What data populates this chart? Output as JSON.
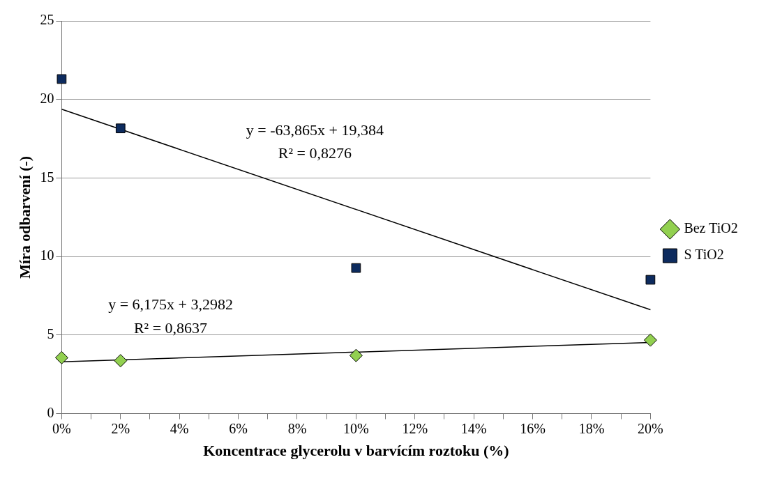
{
  "chart_data": {
    "type": "scatter",
    "xlabel": "Koncentrace glycerolu v barvícím roztoku (%)",
    "ylabel": "Míra odbarvení (-)",
    "series": [
      {
        "name": "Bez TiO2",
        "color": "#92d050",
        "marker": "diamond",
        "x": [
          0,
          2,
          10,
          20
        ],
        "values": [
          3.56,
          3.37,
          3.7,
          4.68
        ]
      },
      {
        "name": "S TiO2",
        "color": "#0d2b5e",
        "marker": "square",
        "x": [
          0,
          2,
          10,
          20
        ],
        "values": [
          21.3,
          18.16,
          9.27,
          8.52
        ]
      },
      {
        "type": "line",
        "color": "#000000",
        "marker": "none",
        "x": [
          0,
          20
        ],
        "values": [
          19.38,
          6.61
        ]
      },
      {
        "type": "line",
        "color": "#000000",
        "marker": "none",
        "x": [
          0,
          20
        ],
        "values": [
          3.3,
          4.53
        ]
      }
    ],
    "xlim": [
      0,
      20
    ],
    "xticks": [
      {
        "value": 0,
        "label": "0%"
      },
      {
        "value": 1,
        "label": null
      },
      {
        "value": 2,
        "label": "2%"
      },
      {
        "value": 3,
        "label": null
      },
      {
        "value": 4,
        "label": "4%"
      },
      {
        "value": 5,
        "label": null
      },
      {
        "value": 6,
        "label": "6%"
      },
      {
        "value": 7,
        "label": null
      },
      {
        "value": 8,
        "label": "8%"
      },
      {
        "value": 9,
        "label": null
      },
      {
        "value": 10,
        "label": "10%"
      },
      {
        "value": 11,
        "label": null
      },
      {
        "value": 12,
        "label": "12%"
      },
      {
        "value": 13,
        "label": null
      },
      {
        "value": 14,
        "label": "14%"
      },
      {
        "value": 15,
        "label": null
      },
      {
        "value": 16,
        "label": "16%"
      },
      {
        "value": 17,
        "label": null
      },
      {
        "value": 18,
        "label": "18%"
      },
      {
        "value": 19,
        "label": null
      },
      {
        "value": 20,
        "label": "20%"
      }
    ],
    "ylim": [
      0,
      25
    ],
    "yticks": [
      0,
      5,
      10,
      15,
      20,
      25
    ],
    "grid": "y",
    "legend": "right",
    "annotations": [
      "y = -63,865x + 19,384",
      "R² = 0,8276",
      "y = 6,175x + 3,2982",
      "R² = 0,8637"
    ]
  }
}
